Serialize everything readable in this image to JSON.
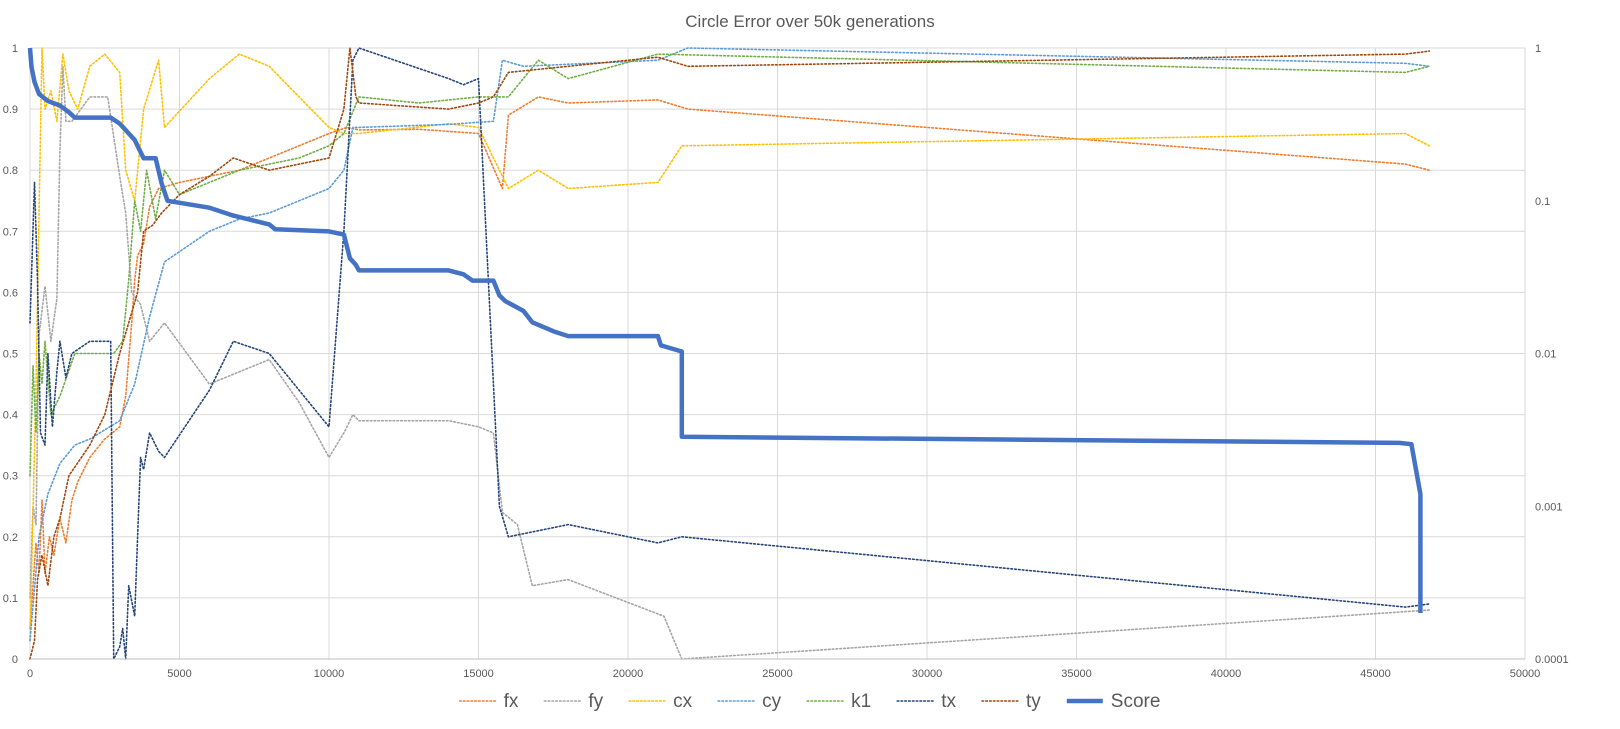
{
  "chart_data": {
    "type": "line",
    "title": "Circle Error over 50k generations",
    "xlabel": "",
    "ylabel": "",
    "xlim": [
      0,
      50000
    ],
    "ylim": [
      0,
      1
    ],
    "y2lim": [
      0.0001,
      1
    ],
    "y2scale": "log",
    "grid": true,
    "legend_position": "bottom",
    "x_ticks": [
      "0",
      "5000",
      "10000",
      "15000",
      "20000",
      "25000",
      "30000",
      "35000",
      "40000",
      "45000",
      "50000"
    ],
    "y_ticks": [
      "0",
      "0.1",
      "0.2",
      "0.3",
      "0.4",
      "0.5",
      "0.6",
      "0.7",
      "0.8",
      "0.9",
      "1"
    ],
    "y2_ticks": [
      "0.0001",
      "0.001",
      "0.01",
      "0.1",
      "1"
    ],
    "series": [
      {
        "name": "fx",
        "color": "#ED7D31",
        "axis": "left",
        "style": "dotted",
        "points": [
          [
            0,
            0.05
          ],
          [
            100,
            0.12
          ],
          [
            200,
            0.19
          ],
          [
            300,
            0.14
          ],
          [
            400,
            0.26
          ],
          [
            500,
            0.14
          ],
          [
            650,
            0.2
          ],
          [
            800,
            0.17
          ],
          [
            1000,
            0.23
          ],
          [
            1200,
            0.19
          ],
          [
            1400,
            0.26
          ],
          [
            1600,
            0.29
          ],
          [
            2000,
            0.33
          ],
          [
            2500,
            0.36
          ],
          [
            3000,
            0.38
          ],
          [
            3200,
            0.43
          ],
          [
            3400,
            0.55
          ],
          [
            3500,
            0.62
          ],
          [
            3600,
            0.66
          ],
          [
            3800,
            0.68
          ],
          [
            4000,
            0.74
          ],
          [
            4300,
            0.77
          ],
          [
            5000,
            0.78
          ],
          [
            6000,
            0.79
          ],
          [
            7000,
            0.8
          ],
          [
            8000,
            0.82
          ],
          [
            9000,
            0.84
          ],
          [
            10000,
            0.86
          ],
          [
            10600,
            0.87
          ],
          [
            11000,
            0.866
          ],
          [
            13000,
            0.867
          ],
          [
            15000,
            0.86
          ],
          [
            15800,
            0.77
          ],
          [
            16000,
            0.89
          ],
          [
            17000,
            0.92
          ],
          [
            18000,
            0.91
          ],
          [
            21000,
            0.915
          ],
          [
            22000,
            0.9
          ],
          [
            46000,
            0.81
          ],
          [
            46800,
            0.8
          ]
        ]
      },
      {
        "name": "fy",
        "color": "#A5A5A5",
        "axis": "left",
        "style": "dotted",
        "points": [
          [
            0,
            0.1
          ],
          [
            100,
            0.25
          ],
          [
            200,
            0.22
          ],
          [
            300,
            0.53
          ],
          [
            500,
            0.61
          ],
          [
            700,
            0.52
          ],
          [
            900,
            0.59
          ],
          [
            1000,
            0.83
          ],
          [
            1100,
            0.97
          ],
          [
            1200,
            0.88
          ],
          [
            1400,
            0.88
          ],
          [
            2000,
            0.92
          ],
          [
            2600,
            0.92
          ],
          [
            3000,
            0.79
          ],
          [
            3200,
            0.73
          ],
          [
            3400,
            0.6
          ],
          [
            3700,
            0.58
          ],
          [
            4000,
            0.52
          ],
          [
            4500,
            0.55
          ],
          [
            6000,
            0.45
          ],
          [
            7000,
            0.47
          ],
          [
            8000,
            0.49
          ],
          [
            9000,
            0.42
          ],
          [
            10000,
            0.33
          ],
          [
            10500,
            0.37
          ],
          [
            10800,
            0.4
          ],
          [
            11000,
            0.39
          ],
          [
            14000,
            0.39
          ],
          [
            15000,
            0.38
          ],
          [
            15500,
            0.37
          ],
          [
            15800,
            0.24
          ],
          [
            16300,
            0.22
          ],
          [
            16800,
            0.12
          ],
          [
            18000,
            0.13
          ],
          [
            21200,
            0.07
          ],
          [
            21800,
            0.0
          ],
          [
            46800,
            0.08
          ]
        ]
      },
      {
        "name": "cx",
        "color": "#FFC000",
        "axis": "left",
        "style": "dotted",
        "points": [
          [
            0,
            0.03
          ],
          [
            200,
            0.45
          ],
          [
            400,
            1.0
          ],
          [
            500,
            0.9
          ],
          [
            700,
            0.93
          ],
          [
            900,
            0.88
          ],
          [
            1100,
            0.99
          ],
          [
            1300,
            0.93
          ],
          [
            1600,
            0.9
          ],
          [
            2000,
            0.97
          ],
          [
            2500,
            0.99
          ],
          [
            3000,
            0.96
          ],
          [
            3200,
            0.8
          ],
          [
            3500,
            0.75
          ],
          [
            3800,
            0.9
          ],
          [
            4300,
            0.98
          ],
          [
            4500,
            0.87
          ],
          [
            6000,
            0.95
          ],
          [
            7000,
            0.99
          ],
          [
            8000,
            0.97
          ],
          [
            9000,
            0.92
          ],
          [
            10000,
            0.87
          ],
          [
            10500,
            0.86
          ],
          [
            11000,
            0.86
          ],
          [
            14000,
            0.876
          ],
          [
            15000,
            0.87
          ],
          [
            15800,
            0.79
          ],
          [
            16000,
            0.77
          ],
          [
            17000,
            0.8
          ],
          [
            18000,
            0.77
          ],
          [
            21000,
            0.78
          ],
          [
            21800,
            0.84
          ],
          [
            46000,
            0.86
          ],
          [
            46800,
            0.84
          ]
        ]
      },
      {
        "name": "cy",
        "color": "#5B9BD5",
        "axis": "left",
        "style": "dotted",
        "points": [
          [
            0,
            0.03
          ],
          [
            300,
            0.2
          ],
          [
            600,
            0.27
          ],
          [
            1000,
            0.32
          ],
          [
            1500,
            0.35
          ],
          [
            2000,
            0.36
          ],
          [
            3000,
            0.39
          ],
          [
            3500,
            0.45
          ],
          [
            4000,
            0.56
          ],
          [
            4500,
            0.65
          ],
          [
            6000,
            0.7
          ],
          [
            7000,
            0.72
          ],
          [
            8000,
            0.73
          ],
          [
            9000,
            0.75
          ],
          [
            10000,
            0.77
          ],
          [
            10500,
            0.8
          ],
          [
            10800,
            0.87
          ],
          [
            11000,
            0.87
          ],
          [
            14000,
            0.875
          ],
          [
            15500,
            0.88
          ],
          [
            15800,
            0.98
          ],
          [
            16500,
            0.97
          ],
          [
            21000,
            0.98
          ],
          [
            22000,
            1.0
          ],
          [
            46000,
            0.975
          ],
          [
            46800,
            0.97
          ]
        ]
      },
      {
        "name": "k1",
        "color": "#70AD47",
        "axis": "left",
        "style": "dotted",
        "points": [
          [
            0,
            0.3
          ],
          [
            100,
            0.48
          ],
          [
            200,
            0.37
          ],
          [
            300,
            0.5
          ],
          [
            400,
            0.45
          ],
          [
            500,
            0.52
          ],
          [
            700,
            0.4
          ],
          [
            1000,
            0.43
          ],
          [
            1500,
            0.5
          ],
          [
            2000,
            0.5
          ],
          [
            2800,
            0.5
          ],
          [
            3100,
            0.52
          ],
          [
            3300,
            0.62
          ],
          [
            3500,
            0.75
          ],
          [
            3700,
            0.7
          ],
          [
            3900,
            0.8
          ],
          [
            4200,
            0.72
          ],
          [
            4500,
            0.8
          ],
          [
            5000,
            0.76
          ],
          [
            6000,
            0.78
          ],
          [
            7000,
            0.8
          ],
          [
            8000,
            0.81
          ],
          [
            9000,
            0.82
          ],
          [
            10000,
            0.84
          ],
          [
            10500,
            0.86
          ],
          [
            11000,
            0.92
          ],
          [
            13000,
            0.91
          ],
          [
            15000,
            0.92
          ],
          [
            16000,
            0.92
          ],
          [
            17000,
            0.98
          ],
          [
            18000,
            0.95
          ],
          [
            21000,
            0.99
          ],
          [
            46000,
            0.96
          ],
          [
            46800,
            0.97
          ]
        ]
      },
      {
        "name": "tx",
        "color": "#264478",
        "axis": "left",
        "style": "dotted",
        "points": [
          [
            0,
            0.55
          ],
          [
            150,
            0.78
          ],
          [
            250,
            0.62
          ],
          [
            350,
            0.37
          ],
          [
            500,
            0.35
          ],
          [
            600,
            0.5
          ],
          [
            750,
            0.38
          ],
          [
            900,
            0.47
          ],
          [
            1000,
            0.52
          ],
          [
            1200,
            0.46
          ],
          [
            1400,
            0.5
          ],
          [
            2000,
            0.52
          ],
          [
            2700,
            0.52
          ],
          [
            2800,
            0.0
          ],
          [
            3000,
            0.02
          ],
          [
            3100,
            0.05
          ],
          [
            3200,
            0.0
          ],
          [
            3300,
            0.12
          ],
          [
            3500,
            0.07
          ],
          [
            3600,
            0.2
          ],
          [
            3700,
            0.33
          ],
          [
            3800,
            0.31
          ],
          [
            4000,
            0.37
          ],
          [
            4300,
            0.34
          ],
          [
            4500,
            0.33
          ],
          [
            6000,
            0.44
          ],
          [
            6800,
            0.52
          ],
          [
            8000,
            0.5
          ],
          [
            9000,
            0.44
          ],
          [
            10000,
            0.38
          ],
          [
            10500,
            0.7
          ],
          [
            10800,
            0.98
          ],
          [
            11000,
            1.0
          ],
          [
            14000,
            0.95
          ],
          [
            14500,
            0.94
          ],
          [
            15000,
            0.95
          ],
          [
            15700,
            0.25
          ],
          [
            16000,
            0.2
          ],
          [
            18000,
            0.22
          ],
          [
            21000,
            0.19
          ],
          [
            21800,
            0.2
          ],
          [
            46000,
            0.085
          ],
          [
            46800,
            0.09
          ]
        ]
      },
      {
        "name": "ty",
        "color": "#9E480E",
        "axis": "left",
        "style": "dotted",
        "points": [
          [
            0,
            0.0
          ],
          [
            150,
            0.03
          ],
          [
            250,
            0.13
          ],
          [
            400,
            0.17
          ],
          [
            600,
            0.12
          ],
          [
            800,
            0.2
          ],
          [
            1000,
            0.23
          ],
          [
            1300,
            0.3
          ],
          [
            2000,
            0.35
          ],
          [
            2500,
            0.4
          ],
          [
            3000,
            0.5
          ],
          [
            3300,
            0.55
          ],
          [
            3600,
            0.6
          ],
          [
            3800,
            0.7
          ],
          [
            4100,
            0.71
          ],
          [
            4400,
            0.73
          ],
          [
            5000,
            0.76
          ],
          [
            6000,
            0.79
          ],
          [
            6800,
            0.82
          ],
          [
            8000,
            0.8
          ],
          [
            9000,
            0.81
          ],
          [
            10000,
            0.82
          ],
          [
            10500,
            0.9
          ],
          [
            10700,
            1.0
          ],
          [
            10900,
            0.92
          ],
          [
            11000,
            0.91
          ],
          [
            14000,
            0.9
          ],
          [
            15000,
            0.91
          ],
          [
            15500,
            0.92
          ],
          [
            16000,
            0.96
          ],
          [
            18000,
            0.97
          ],
          [
            21000,
            0.985
          ],
          [
            22000,
            0.97
          ],
          [
            46000,
            0.99
          ],
          [
            46800,
            0.995
          ]
        ]
      },
      {
        "name": "Score",
        "color": "#4472C4",
        "axis": "right",
        "style": "solid",
        "points": [
          [
            0,
            1.0
          ],
          [
            50,
            0.75
          ],
          [
            150,
            0.6
          ],
          [
            300,
            0.5
          ],
          [
            600,
            0.45
          ],
          [
            1000,
            0.42
          ],
          [
            1300,
            0.38
          ],
          [
            1500,
            0.35
          ],
          [
            2000,
            0.35
          ],
          [
            2700,
            0.35
          ],
          [
            3000,
            0.32
          ],
          [
            3200,
            0.29
          ],
          [
            3500,
            0.25
          ],
          [
            3800,
            0.19
          ],
          [
            4200,
            0.19
          ],
          [
            4400,
            0.13
          ],
          [
            4600,
            0.1
          ],
          [
            6000,
            0.09
          ],
          [
            6800,
            0.08
          ],
          [
            8000,
            0.07
          ],
          [
            8200,
            0.065
          ],
          [
            10000,
            0.063
          ],
          [
            10500,
            0.06
          ],
          [
            10700,
            0.042
          ],
          [
            10900,
            0.038
          ],
          [
            11000,
            0.035
          ],
          [
            14000,
            0.035
          ],
          [
            14500,
            0.033
          ],
          [
            14800,
            0.03
          ],
          [
            15500,
            0.03
          ],
          [
            15700,
            0.024
          ],
          [
            15900,
            0.022
          ],
          [
            16500,
            0.019
          ],
          [
            16800,
            0.016
          ],
          [
            17500,
            0.014
          ],
          [
            18000,
            0.013
          ],
          [
            21000,
            0.013
          ],
          [
            21100,
            0.0113
          ],
          [
            21800,
            0.0103
          ],
          [
            21800,
            0.00285
          ],
          [
            45800,
            0.0026
          ],
          [
            46200,
            0.00255
          ],
          [
            46500,
            0.0012
          ],
          [
            46500,
            0.0002
          ]
        ]
      }
    ]
  }
}
